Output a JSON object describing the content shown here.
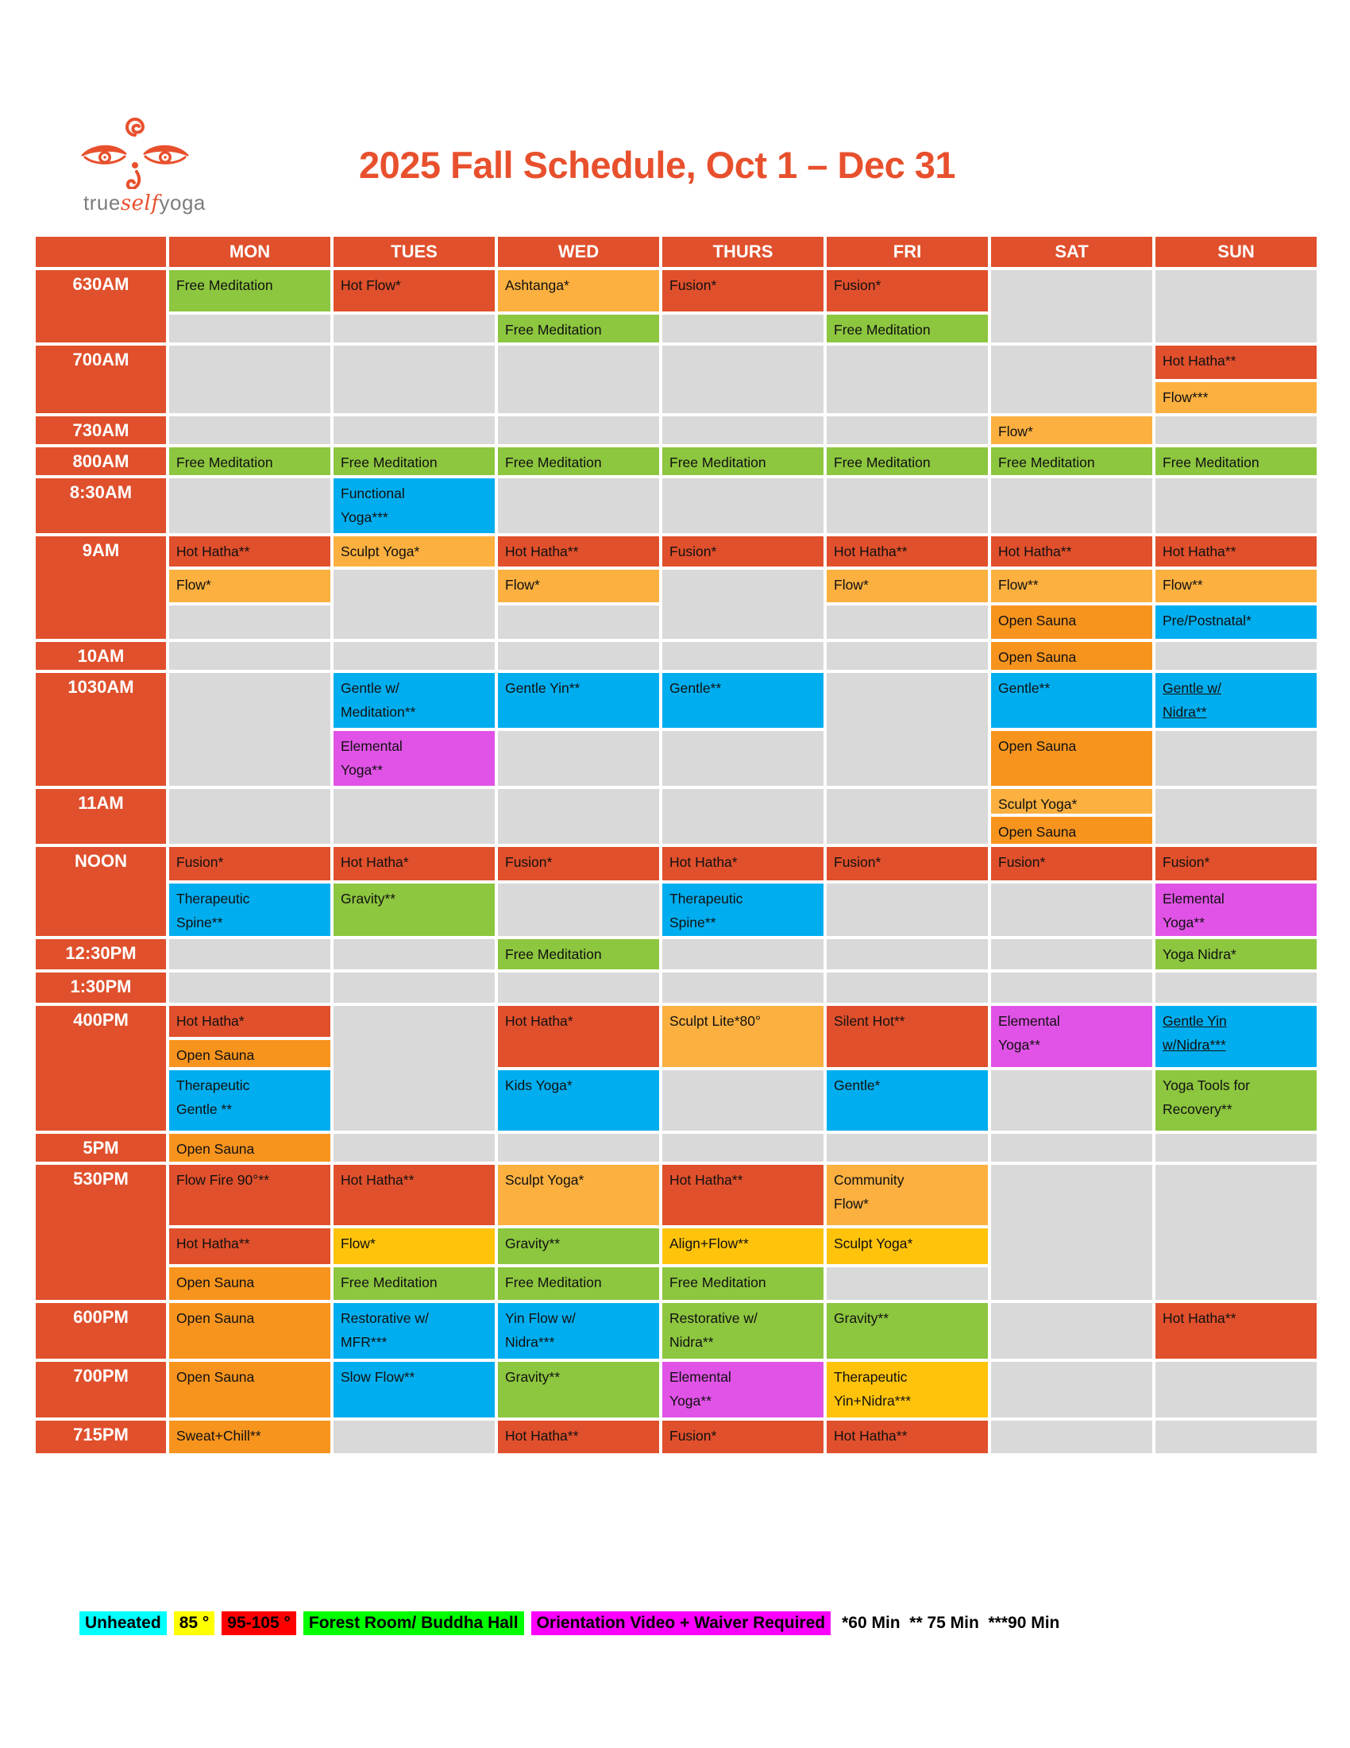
{
  "title": "2025 Fall Schedule, Oct 1 – Dec 31",
  "logo": {
    "brand_true": "true",
    "brand_self": "self",
    "brand_yoga": "yoga"
  },
  "colors": {
    "red": "#E0502C",
    "amber": "#FBB040",
    "gold": "#FFC30B",
    "green": "#8DC63F",
    "blue": "#00AEEF",
    "orange": "#F7941E",
    "magenta": "#E153E6",
    "gray": "#D9D9D9",
    "title_text": "#E8502D",
    "brand_gray": "#7D7D7D"
  },
  "days": [
    "MON",
    "TUES",
    "WED",
    "THURS",
    "FRI",
    "SAT",
    "SUN"
  ],
  "blocks": [
    {
      "time": "630AM",
      "rows": [
        {
          "h": 52,
          "cells": [
            {
              "t": "Free Meditation",
              "c": "green"
            },
            {
              "t": "Hot Flow*",
              "c": "red"
            },
            {
              "t": "Ashtanga*",
              "c": "amber"
            },
            {
              "t": "Fusion*",
              "c": "red"
            },
            {
              "t": "Fusion*",
              "c": "red"
            },
            null,
            null
          ]
        },
        {
          "h": 35,
          "cells": [
            null,
            null,
            {
              "t": "Free Meditation",
              "c": "green"
            },
            null,
            {
              "t": "Free Meditation",
              "c": "green"
            },
            null,
            null
          ]
        }
      ]
    },
    {
      "time": "700AM",
      "rows": [
        {
          "h": 42,
          "cells": [
            null,
            null,
            null,
            null,
            null,
            null,
            {
              "t": "Hot Hatha**",
              "c": "red"
            }
          ]
        },
        {
          "h": 39,
          "cells": [
            null,
            null,
            null,
            null,
            null,
            null,
            {
              "t": "Flow***",
              "c": "amber"
            }
          ]
        }
      ]
    },
    {
      "time": "730AM",
      "rows": [
        {
          "h": 35,
          "cells": [
            null,
            null,
            null,
            null,
            null,
            {
              "t": "Flow*",
              "c": "amber"
            },
            null
          ]
        }
      ]
    },
    {
      "time": "800AM",
      "rows": [
        {
          "h": 35,
          "cells": [
            {
              "t": "Free Meditation",
              "c": "green"
            },
            {
              "t": "Free Meditation",
              "c": "green"
            },
            {
              "t": "Free Meditation",
              "c": "green"
            },
            {
              "t": "Free Meditation",
              "c": "green"
            },
            {
              "t": "Free Meditation",
              "c": "green"
            },
            {
              "t": "Free Meditation",
              "c": "green"
            },
            {
              "t": "Free Meditation",
              "c": "green"
            }
          ]
        }
      ]
    },
    {
      "time": "8:30AM",
      "rows": [
        {
          "h": 69,
          "cells": [
            null,
            {
              "t": "Functional\nYoga***",
              "c": "blue"
            },
            null,
            null,
            null,
            null,
            null
          ]
        }
      ]
    },
    {
      "time": "9AM",
      "rows": [
        {
          "h": 38,
          "cells": [
            {
              "t": "Hot Hatha**",
              "c": "red"
            },
            {
              "t": "Sculpt Yoga*",
              "c": "amber"
            },
            {
              "t": "Hot Hatha**",
              "c": "red"
            },
            {
              "t": "Fusion*",
              "c": "red"
            },
            {
              "t": "Hot Hatha**",
              "c": "red"
            },
            {
              "t": "Hot Hatha**",
              "c": "red"
            },
            {
              "t": "Hot Hatha**",
              "c": "red"
            }
          ]
        },
        {
          "h": 41,
          "cells": [
            {
              "t": "Flow*",
              "c": "amber"
            },
            null,
            {
              "t": "Flow*",
              "c": "amber"
            },
            null,
            {
              "t": "Flow*",
              "c": "amber"
            },
            {
              "t": "Flow**",
              "c": "amber"
            },
            {
              "t": "Flow**",
              "c": "amber"
            }
          ]
        },
        {
          "h": 42,
          "cells": [
            null,
            null,
            null,
            null,
            null,
            {
              "t": "Open Sauna",
              "c": "orange"
            },
            {
              "t": "Pre/Postnatal*",
              "c": "blue"
            }
          ]
        }
      ]
    },
    {
      "time": "10AM",
      "rows": [
        {
          "h": 35,
          "cells": [
            null,
            null,
            null,
            null,
            null,
            {
              "t": "Open Sauna",
              "c": "orange"
            },
            null
          ]
        }
      ]
    },
    {
      "time": "1030AM",
      "rows": [
        {
          "h": 69,
          "cells": [
            null,
            {
              "t": "Gentle w/\nMeditation**",
              "c": "blue"
            },
            {
              "t": "Gentle Yin**",
              "c": "blue"
            },
            {
              "t": "Gentle**",
              "c": "blue"
            },
            null,
            {
              "t": "Gentle**",
              "c": "blue"
            },
            {
              "t": "Gentle w/\nNidra**",
              "c": "blue",
              "u": true
            }
          ]
        },
        {
          "h": 69,
          "cells": [
            null,
            {
              "t": "Elemental\nYoga**",
              "c": "magenta"
            },
            null,
            null,
            null,
            {
              "t": "Open Sauna",
              "c": "orange"
            },
            null
          ]
        }
      ]
    },
    {
      "time": "11AM",
      "rows": [
        {
          "h": 31,
          "cells": [
            null,
            null,
            null,
            null,
            null,
            {
              "t": "Sculpt Yoga*",
              "c": "amber"
            },
            null
          ]
        },
        {
          "h": 34,
          "cells": [
            null,
            null,
            null,
            null,
            null,
            {
              "t": "Open Sauna",
              "c": "orange"
            },
            null
          ]
        }
      ]
    },
    {
      "time": "NOON",
      "rows": [
        {
          "h": 42,
          "cells": [
            {
              "t": "Fusion*",
              "c": "red"
            },
            {
              "t": "Hot Hatha*",
              "c": "red"
            },
            {
              "t": "Fusion*",
              "c": "red"
            },
            {
              "t": "Hot Hatha*",
              "c": "red"
            },
            {
              "t": "Fusion*",
              "c": "red"
            },
            {
              "t": "Fusion*",
              "c": "red"
            },
            {
              "t": "Fusion*",
              "c": "red"
            }
          ]
        },
        {
          "h": 66,
          "cells": [
            {
              "t": "Therapeutic\nSpine**",
              "c": "blue"
            },
            {
              "t": "Gravity**",
              "c": "green"
            },
            null,
            {
              "t": "Therapeutic\nSpine**",
              "c": "blue"
            },
            null,
            null,
            {
              "t": "Elemental\nYoga**",
              "c": "magenta"
            }
          ]
        }
      ]
    },
    {
      "time": "12:30PM",
      "rows": [
        {
          "h": 38,
          "cells": [
            null,
            null,
            {
              "t": "Free Meditation",
              "c": "green"
            },
            null,
            null,
            null,
            {
              "t": "Yoga Nidra*",
              "c": "green"
            }
          ]
        }
      ]
    },
    {
      "time": "1:30PM",
      "rows": [
        {
          "h": 38,
          "cells": [
            null,
            null,
            null,
            null,
            null,
            null,
            null
          ]
        }
      ]
    },
    {
      "time": "400PM",
      "rows": [
        {
          "h": 39,
          "cells": [
            {
              "t": "Hot Hatha*",
              "c": "red"
            },
            null,
            {
              "t": "Hot Hatha*",
              "c": "red",
              "s": 2
            },
            {
              "t": "Sculpt Lite*80°",
              "c": "amber",
              "s": 2
            },
            {
              "t": "Silent Hot**",
              "c": "red",
              "s": 2
            },
            {
              "t": "Elemental\nYoga**",
              "c": "magenta",
              "s": 2
            },
            {
              "t": "Gentle Yin\nw/Nidra***",
              "c": "blue",
              "u": true,
              "s": 2
            }
          ]
        },
        {
          "h": 34,
          "cells": [
            {
              "t": "Open Sauna",
              "c": "orange"
            },
            null,
            "^",
            "^",
            "^",
            "^",
            "^"
          ]
        },
        {
          "h": 76,
          "cells": [
            {
              "t": "Therapeutic\nGentle **",
              "c": "blue"
            },
            null,
            {
              "t": "Kids Yoga*",
              "c": "blue"
            },
            null,
            {
              "t": "Gentle*",
              "c": "blue"
            },
            null,
            {
              "t": "Yoga Tools for\nRecovery**",
              "c": "green"
            }
          ]
        }
      ]
    },
    {
      "time": "5PM",
      "rows": [
        {
          "h": 35,
          "cells": [
            {
              "t": "Open Sauna",
              "c": "orange"
            },
            null,
            null,
            null,
            null,
            null,
            null
          ]
        }
      ]
    },
    {
      "time": "530PM",
      "rows": [
        {
          "h": 76,
          "cells": [
            {
              "t": "Flow Fire 90°**",
              "c": "red"
            },
            {
              "t": "Hot Hatha**",
              "c": "red"
            },
            {
              "t": "Sculpt Yoga*",
              "c": "amber"
            },
            {
              "t": "Hot Hatha**",
              "c": "red"
            },
            {
              "t": "Community\nFlow*",
              "c": "amber"
            },
            null,
            null
          ]
        },
        {
          "h": 45,
          "cells": [
            {
              "t": "Hot Hatha**",
              "c": "red"
            },
            {
              "t": "Flow*",
              "c": "gold"
            },
            {
              "t": "Gravity**",
              "c": "green"
            },
            {
              "t": "Align+Flow**",
              "c": "gold"
            },
            {
              "t": "Sculpt Yoga*",
              "c": "gold"
            },
            null,
            null
          ]
        },
        {
          "h": 41,
          "cells": [
            {
              "t": "Open Sauna",
              "c": "orange"
            },
            {
              "t": "Free Meditation",
              "c": "green"
            },
            {
              "t": "Free Meditation",
              "c": "green"
            },
            {
              "t": "Free Meditation",
              "c": "green"
            },
            null,
            null,
            null
          ]
        }
      ]
    },
    {
      "time": "600PM",
      "rows": [
        {
          "h": 70,
          "cells": [
            {
              "t": "Open Sauna",
              "c": "orange"
            },
            {
              "t": "Restorative w/\nMFR***",
              "c": "blue"
            },
            {
              "t": "Yin Flow w/\nNidra***",
              "c": "blue"
            },
            {
              "t": "Restorative w/\nNidra**",
              "c": "green"
            },
            {
              "t": "Gravity**",
              "c": "green"
            },
            null,
            {
              "t": "Hot Hatha**",
              "c": "red"
            }
          ]
        }
      ]
    },
    {
      "time": "700PM",
      "rows": [
        {
          "h": 70,
          "cells": [
            {
              "t": "Open Sauna",
              "c": "orange"
            },
            {
              "t": "Slow Flow**",
              "c": "blue"
            },
            {
              "t": "Gravity**",
              "c": "green"
            },
            {
              "t": "Elemental\nYoga**",
              "c": "magenta"
            },
            {
              "t": "Therapeutic\nYin+Nidra***",
              "c": "gold"
            },
            null,
            null
          ]
        }
      ]
    },
    {
      "time": "715PM",
      "rows": [
        {
          "h": 41,
          "cells": [
            {
              "t": "Sweat+Chill**",
              "c": "orange"
            },
            null,
            {
              "t": "Hot Hatha**",
              "c": "red"
            },
            {
              "t": "Fusion*",
              "c": "red"
            },
            {
              "t": "Hot Hatha**",
              "c": "red"
            },
            null,
            null
          ]
        }
      ]
    }
  ],
  "legend": {
    "items": [
      {
        "label": "Unheated",
        "bg": "#00FFFF"
      },
      {
        "label": "85 °",
        "bg": "#FFFF00"
      },
      {
        "label": "95-105 °",
        "bg": "#FF0000"
      },
      {
        "label": "Forest Room/ Buddha Hall",
        "bg": "#00FF00"
      },
      {
        "label": "Orientation Video + Waiver Required",
        "bg": "#FF00FF"
      }
    ],
    "durations": "*60 Min  ** 75 Min  ***90 Min"
  }
}
